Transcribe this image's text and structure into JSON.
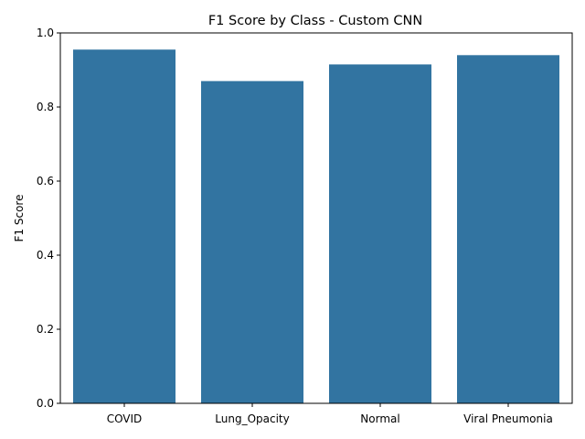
{
  "chart_data": {
    "type": "bar",
    "title": "F1 Score by Class - Custom CNN",
    "xlabel": "",
    "ylabel": "F1 Score",
    "categories": [
      "COVID",
      "Lung_Opacity",
      "Normal",
      "Viral Pneumonia"
    ],
    "values": [
      0.955,
      0.87,
      0.915,
      0.94
    ],
    "ylim": [
      0,
      1.0
    ],
    "yticks": [
      0.0,
      0.2,
      0.4,
      0.6,
      0.8,
      1.0
    ],
    "ytick_labels": [
      "0.0",
      "0.2",
      "0.4",
      "0.6",
      "0.8",
      "1.0"
    ],
    "grid": false,
    "bar_color": "#3274a1"
  }
}
